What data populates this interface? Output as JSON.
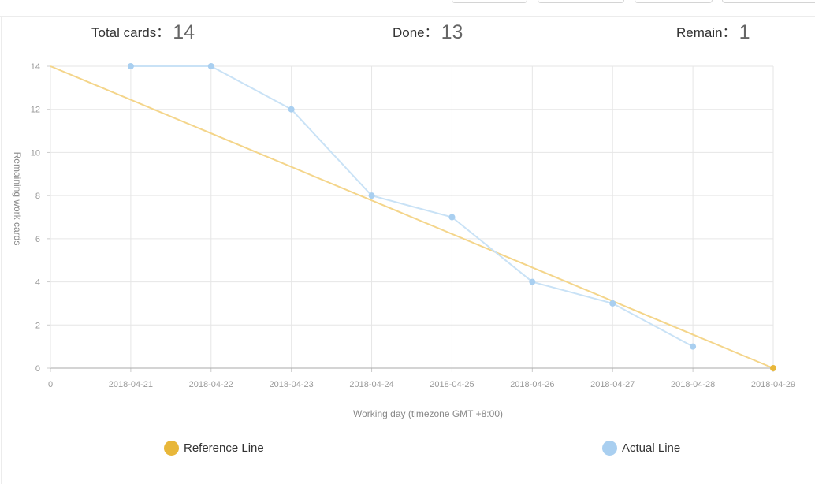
{
  "summary": {
    "total_label": "Total cards：",
    "total_value": "14",
    "done_label": "Done：",
    "done_value": "13",
    "remain_label": "Remain：",
    "remain_value": "1"
  },
  "chart_data": {
    "type": "line",
    "xlabel": "Working day (timezone GMT +8:00)",
    "ylabel": "Remaining work cards",
    "categories": [
      "0",
      "2018-04-21",
      "2018-04-22",
      "2018-04-23",
      "2018-04-24",
      "2018-04-25",
      "2018-04-26",
      "2018-04-27",
      "2018-04-28",
      "2018-04-29"
    ],
    "ylim": [
      0,
      14
    ],
    "yticks": [
      0,
      2,
      4,
      6,
      8,
      10,
      12,
      14
    ],
    "grid": true,
    "legend_position": "bottom",
    "series": [
      {
        "name": "Reference Line",
        "color": "#e8b73a",
        "line_color": "#f4d58a",
        "values": [
          14,
          null,
          null,
          null,
          null,
          null,
          null,
          null,
          null,
          0
        ],
        "markers_at": [
          9
        ]
      },
      {
        "name": "Actual Line",
        "color": "#a9cff0",
        "line_color": "#c9e2f6",
        "values": [
          null,
          14,
          14,
          12,
          8,
          7,
          4,
          3,
          1,
          null
        ],
        "markers_at": [
          1,
          2,
          3,
          4,
          5,
          6,
          7,
          8
        ]
      }
    ]
  }
}
